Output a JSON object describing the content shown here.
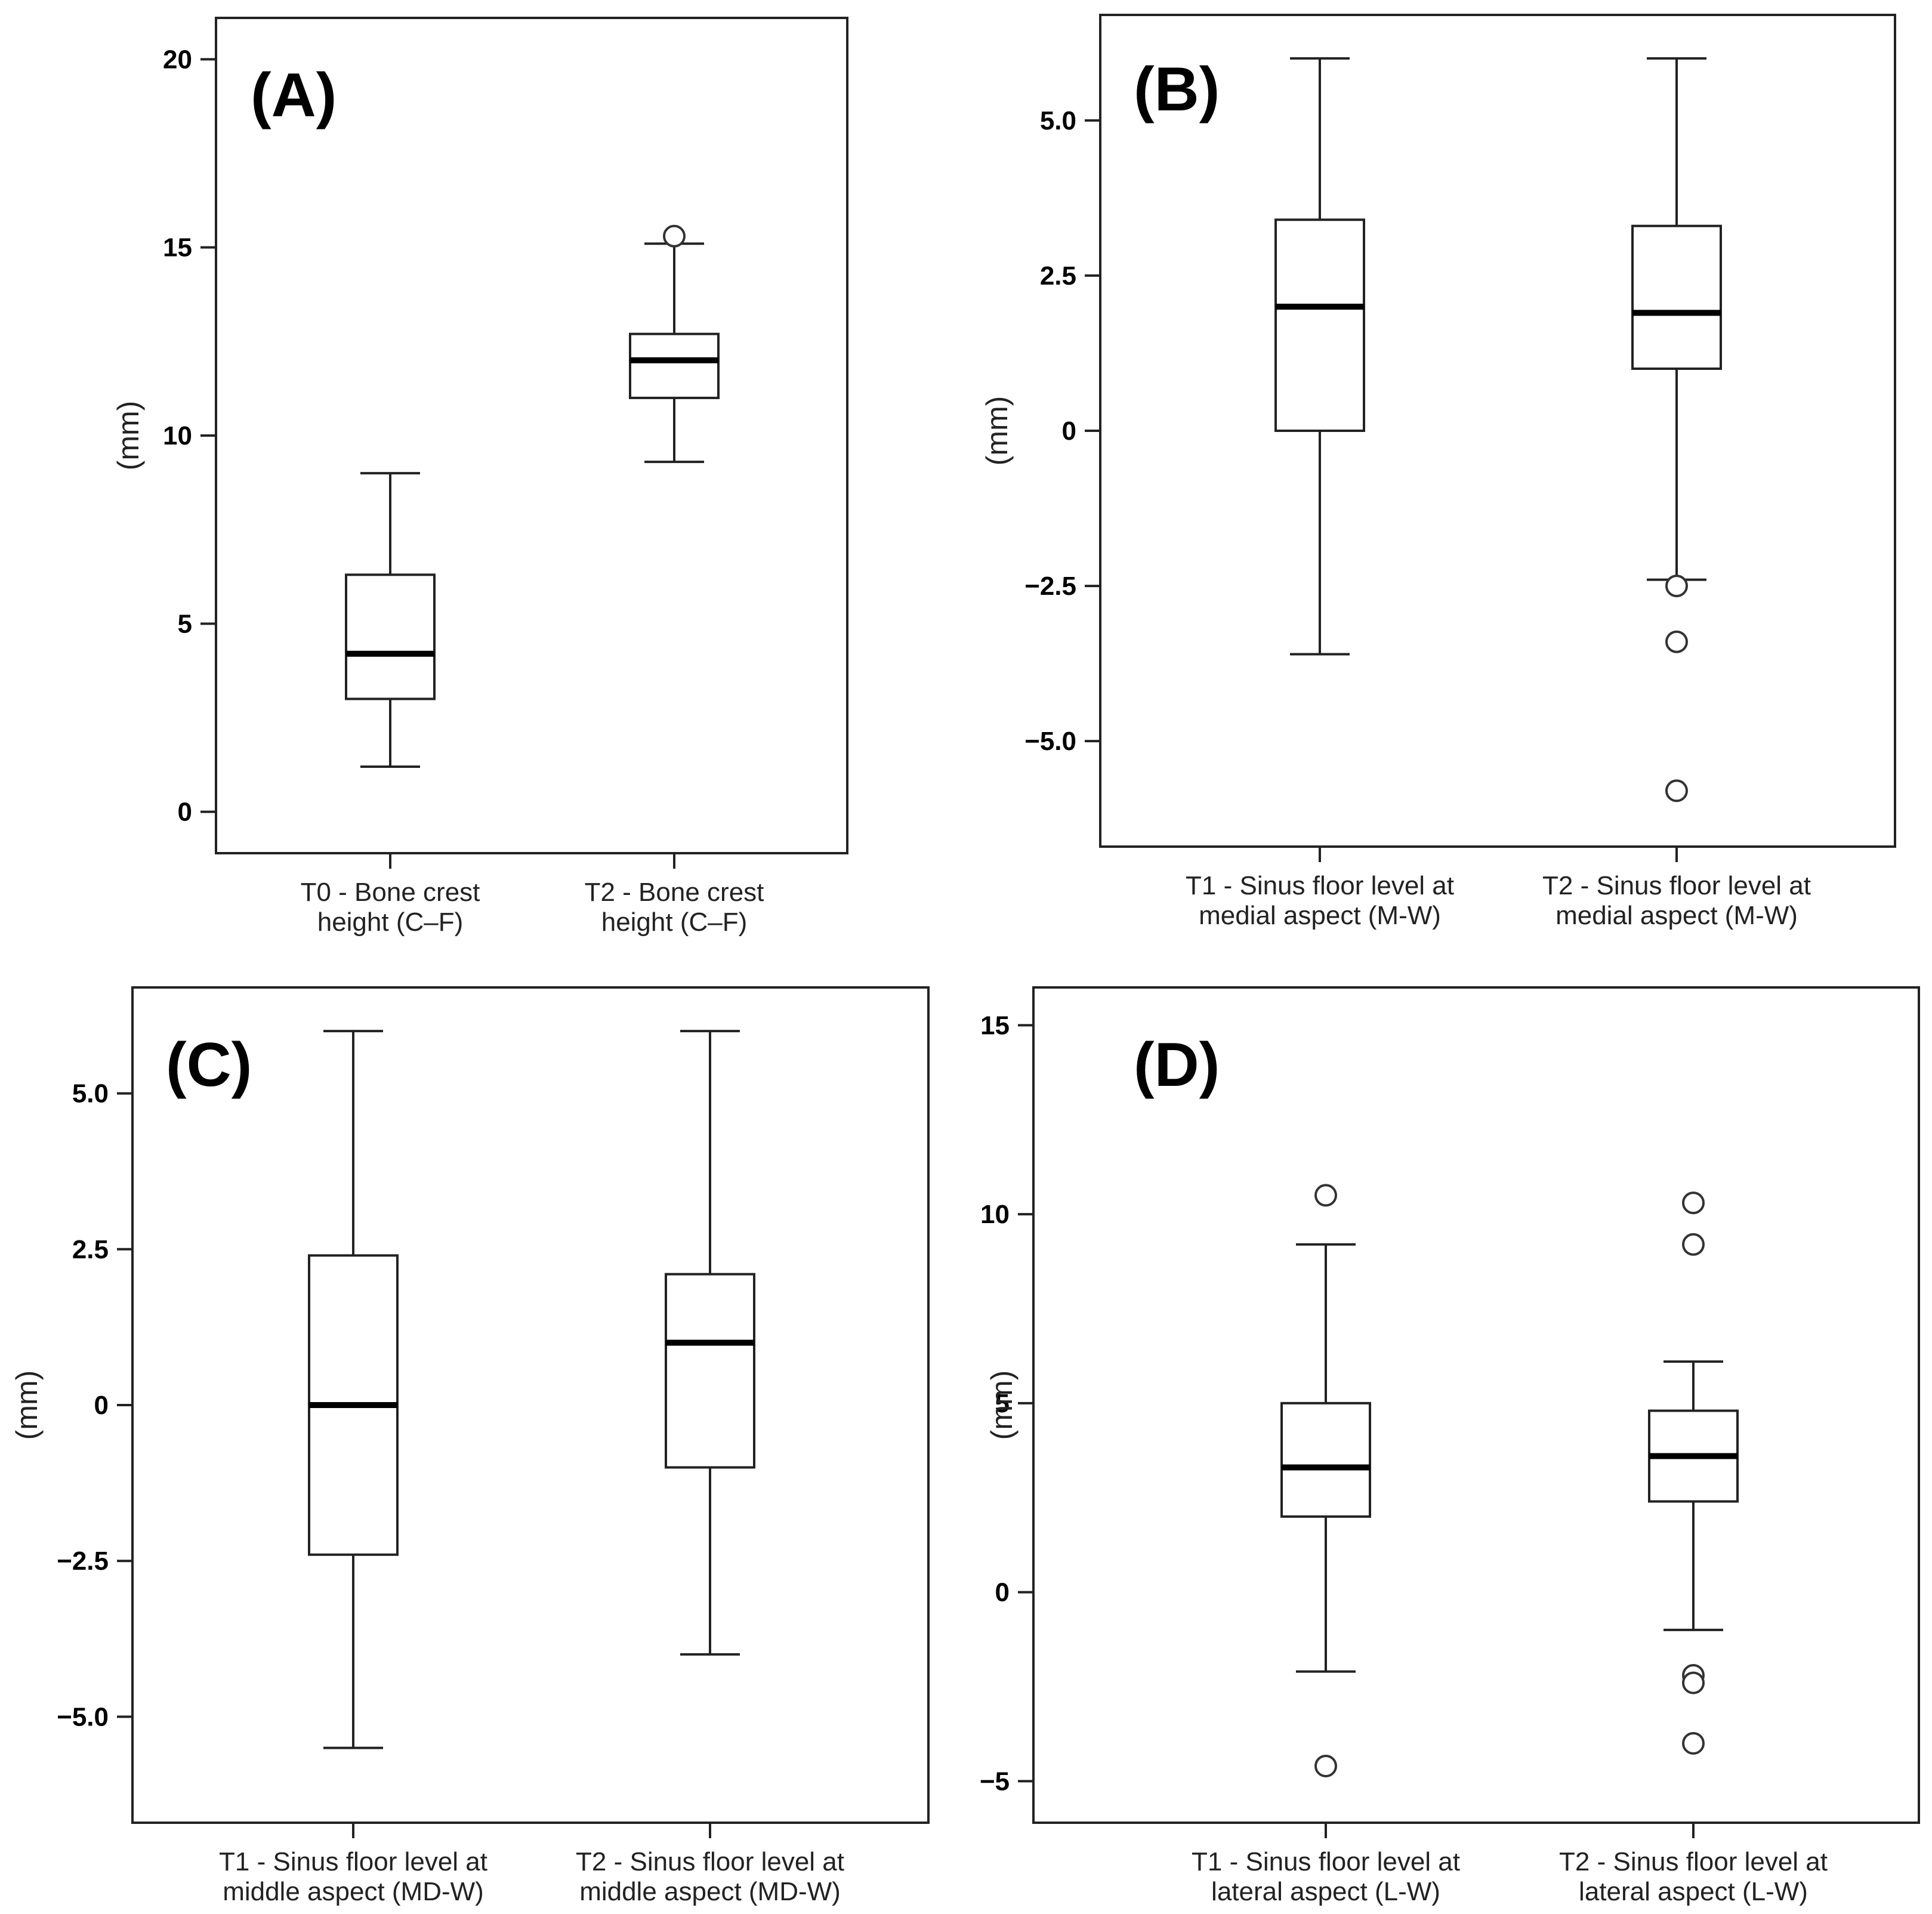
{
  "chart_data": [
    {
      "type": "boxplot",
      "panel_label": "(A)",
      "ylabel": "(mm)",
      "ylim": [
        -1.1,
        21.1
      ],
      "yticks": [
        0,
        5,
        10,
        15,
        20
      ],
      "ytick_labels": [
        "0",
        "5",
        "10",
        "15",
        "20"
      ],
      "categories": [
        {
          "line1": "T0 - Bone crest",
          "line2": "height (C–F)"
        },
        {
          "line1": "T2 - Bone crest",
          "line2": "height (C–F)"
        }
      ],
      "boxes": [
        {
          "whisker_low": 1.2,
          "q1": 3.0,
          "median": 4.2,
          "q3": 6.3,
          "whisker_high": 9.0,
          "outliers": []
        },
        {
          "whisker_low": 9.3,
          "q1": 11.0,
          "median": 12.0,
          "q3": 12.7,
          "whisker_high": 15.1,
          "outliers": [
            15.3
          ]
        }
      ]
    },
    {
      "type": "boxplot",
      "panel_label": "(B)",
      "ylabel": "(mm)",
      "ylim": [
        -6.7,
        6.7
      ],
      "yticks": [
        -5,
        -2.5,
        0,
        2.5,
        5
      ],
      "ytick_labels": [
        "−5.0",
        "−2.5",
        "0",
        "2.5",
        "5.0"
      ],
      "categories": [
        {
          "line1": "T1 - Sinus floor level at",
          "line2": "medial aspect (M-W)"
        },
        {
          "line1": "T2 - Sinus floor level at",
          "line2": "medial aspect (M-W)"
        }
      ],
      "boxes": [
        {
          "whisker_low": -3.6,
          "q1": 0.0,
          "median": 2.0,
          "q3": 3.4,
          "whisker_high": 6.0,
          "outliers": []
        },
        {
          "whisker_low": -2.4,
          "q1": 1.0,
          "median": 1.9,
          "q3": 3.3,
          "whisker_high": 6.0,
          "outliers": [
            -2.5,
            -3.4,
            -5.8
          ]
        }
      ]
    },
    {
      "type": "boxplot",
      "panel_label": "(C)",
      "ylabel": "(mm)",
      "ylim": [
        -6.7,
        6.7
      ],
      "yticks": [
        -5,
        -2.5,
        0,
        2.5,
        5
      ],
      "ytick_labels": [
        "−5.0",
        "−2.5",
        "0",
        "2.5",
        "5.0"
      ],
      "categories": [
        {
          "line1": "T1 - Sinus floor level at",
          "line2": "middle aspect (MD-W)"
        },
        {
          "line1": "T2 - Sinus floor level at",
          "line2": "middle aspect (MD-W)"
        }
      ],
      "boxes": [
        {
          "whisker_low": -5.5,
          "q1": -2.4,
          "median": 0.0,
          "q3": 2.4,
          "whisker_high": 6.0,
          "outliers": []
        },
        {
          "whisker_low": -4.0,
          "q1": -1.0,
          "median": 1.0,
          "q3": 2.1,
          "whisker_high": 6.0,
          "outliers": []
        }
      ]
    },
    {
      "type": "boxplot",
      "panel_label": "(D)",
      "ylabel": "(mm)",
      "ylim": [
        -6.1,
        16.0
      ],
      "yticks": [
        -5,
        0,
        5,
        10,
        15
      ],
      "ytick_labels": [
        "−5",
        "0",
        "5",
        "10",
        "15"
      ],
      "categories": [
        {
          "line1": "T1 - Sinus floor level at",
          "line2": "lateral aspect (L-W)"
        },
        {
          "line1": "T2 - Sinus floor level at",
          "line2": "lateral aspect (L-W)"
        }
      ],
      "boxes": [
        {
          "whisker_low": -2.1,
          "q1": 2.0,
          "median": 3.3,
          "q3": 5.0,
          "whisker_high": 9.2,
          "outliers": [
            10.5,
            -4.6
          ]
        },
        {
          "whisker_low": -1.0,
          "q1": 2.4,
          "median": 3.6,
          "q3": 4.8,
          "whisker_high": 6.1,
          "outliers": [
            10.3,
            9.2,
            -2.2,
            -2.4,
            -4.0
          ]
        }
      ]
    }
  ]
}
